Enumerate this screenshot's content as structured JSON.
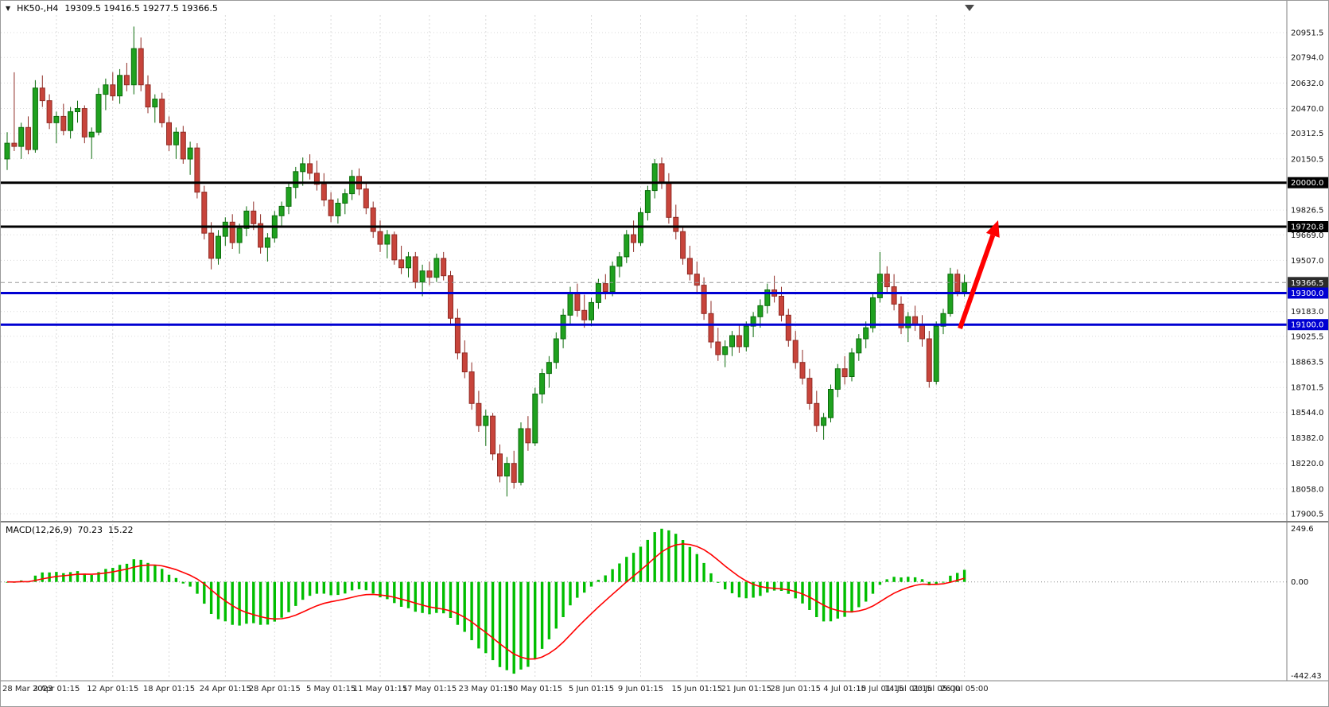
{
  "window": {
    "symbol": "HK50-,H4",
    "ohlc_text": "19309.5 19416.5 19277.5 19366.5"
  },
  "colors": {
    "bull": "#1FA11F",
    "bull_border": "#0B6B0B",
    "bear": "#C8443B",
    "bear_border": "#8F2B24",
    "hist": "#00BE00",
    "signal": "#FF0000",
    "grid": "#DADADA",
    "blue_line": "#0000D2",
    "black_line": "#000000",
    "arrow": "#FF0000"
  },
  "chart_data": {
    "type": "candlestick",
    "title": "HK50-,H4",
    "current_ohlc": {
      "open": 19309.5,
      "high": 19416.5,
      "low": 19277.5,
      "close": 19366.5
    },
    "y_axis_ticks": [
      20951.5,
      20794.0,
      20632.0,
      20470.0,
      20312.5,
      20150.5,
      19826.5,
      19669.0,
      19507.0,
      19183.0,
      19025.5,
      18863.5,
      18701.5,
      18544.0,
      18382.0,
      18220.0,
      18058.0,
      17900.5
    ],
    "price_lines": [
      {
        "price": 20000.0,
        "label": "20000.0",
        "color": "#000000",
        "style": "solid"
      },
      {
        "price": 19720.8,
        "label": "19720.8",
        "color": "#000000",
        "style": "solid"
      },
      {
        "price": 19366.5,
        "label": "19366.5",
        "color": "#9A9A9A",
        "tag_color": "#2B2B2B",
        "style": "bid-dashed"
      },
      {
        "price": 19300.0,
        "label": "19300.0",
        "color": "#0000D2",
        "style": "solid"
      },
      {
        "price": 19100.0,
        "label": "19100.0",
        "color": "#0000D2",
        "style": "solid"
      }
    ],
    "x_axis_labels": [
      {
        "label": "28 Mar 2023",
        "i": 0
      },
      {
        "label": "3 Apr 01:15",
        "i": 7
      },
      {
        "label": "12 Apr 01:15",
        "i": 15
      },
      {
        "label": "18 Apr 01:15",
        "i": 23
      },
      {
        "label": "24 Apr 01:15",
        "i": 31
      },
      {
        "label": "28 Apr 01:15",
        "i": 38
      },
      {
        "label": "5 May 01:15",
        "i": 46
      },
      {
        "label": "11 May 01:15",
        "i": 53
      },
      {
        "label": "17 May 01:15",
        "i": 60
      },
      {
        "label": "23 May 01:15",
        "i": 68
      },
      {
        "label": "30 May 01:15",
        "i": 75
      },
      {
        "label": "5 Jun 01:15",
        "i": 83
      },
      {
        "label": "9 Jun 01:15",
        "i": 90
      },
      {
        "label": "15 Jun 01:15",
        "i": 98
      },
      {
        "label": "21 Jun 01:15",
        "i": 105
      },
      {
        "label": "28 Jun 01:15",
        "i": 112
      },
      {
        "label": "4 Jul 01:15",
        "i": 119
      },
      {
        "label": "10 Jul 01:15",
        "i": 124
      },
      {
        "label": "14 Jul 01:15",
        "i": 128
      },
      {
        "label": "20 Jul 05:00",
        "i": 132
      },
      {
        "label": "26 Jul 05:00",
        "i": 136
      }
    ],
    "candles": [
      [
        20150,
        20320,
        20080,
        20250
      ],
      [
        20250,
        20700,
        20200,
        20230
      ],
      [
        20230,
        20380,
        20150,
        20350
      ],
      [
        20350,
        20420,
        20180,
        20210
      ],
      [
        20210,
        20650,
        20190,
        20600
      ],
      [
        20600,
        20680,
        20480,
        20520
      ],
      [
        20520,
        20560,
        20340,
        20380
      ],
      [
        20380,
        20450,
        20250,
        20420
      ],
      [
        20420,
        20500,
        20300,
        20330
      ],
      [
        20330,
        20480,
        20280,
        20450
      ],
      [
        20450,
        20520,
        20380,
        20470
      ],
      [
        20470,
        20490,
        20250,
        20290
      ],
      [
        20290,
        20350,
        20150,
        20320
      ],
      [
        20320,
        20600,
        20300,
        20560
      ],
      [
        20560,
        20660,
        20460,
        20620
      ],
      [
        20620,
        20700,
        20520,
        20550
      ],
      [
        20550,
        20720,
        20500,
        20680
      ],
      [
        20680,
        20760,
        20580,
        20620
      ],
      [
        20620,
        20990,
        20560,
        20850
      ],
      [
        20850,
        20920,
        20580,
        20620
      ],
      [
        20620,
        20680,
        20440,
        20480
      ],
      [
        20480,
        20560,
        20380,
        20530
      ],
      [
        20530,
        20570,
        20350,
        20380
      ],
      [
        20380,
        20420,
        20200,
        20240
      ],
      [
        20240,
        20350,
        20150,
        20320
      ],
      [
        20320,
        20360,
        20120,
        20150
      ],
      [
        20150,
        20260,
        20050,
        20220
      ],
      [
        20220,
        20250,
        19900,
        19940
      ],
      [
        19940,
        19980,
        19640,
        19680
      ],
      [
        19680,
        19750,
        19450,
        19520
      ],
      [
        19520,
        19700,
        19480,
        19660
      ],
      [
        19660,
        19780,
        19600,
        19750
      ],
      [
        19750,
        19800,
        19580,
        19620
      ],
      [
        19620,
        19740,
        19550,
        19710
      ],
      [
        19710,
        19850,
        19660,
        19820
      ],
      [
        19820,
        19880,
        19700,
        19740
      ],
      [
        19740,
        19800,
        19550,
        19590
      ],
      [
        19590,
        19680,
        19500,
        19650
      ],
      [
        19650,
        19820,
        19620,
        19790
      ],
      [
        19790,
        19880,
        19720,
        19850
      ],
      [
        19850,
        20000,
        19800,
        19970
      ],
      [
        19970,
        20100,
        19900,
        20070
      ],
      [
        20070,
        20160,
        19980,
        20120
      ],
      [
        20120,
        20180,
        20020,
        20060
      ],
      [
        20060,
        20140,
        19950,
        19990
      ],
      [
        19990,
        20060,
        19850,
        19890
      ],
      [
        19890,
        19940,
        19750,
        19790
      ],
      [
        19790,
        19900,
        19740,
        19870
      ],
      [
        19870,
        19960,
        19800,
        19930
      ],
      [
        19930,
        20080,
        19890,
        20040
      ],
      [
        20040,
        20090,
        19920,
        19960
      ],
      [
        19960,
        20000,
        19800,
        19840
      ],
      [
        19840,
        19880,
        19650,
        19690
      ],
      [
        19690,
        19760,
        19560,
        19610
      ],
      [
        19610,
        19700,
        19520,
        19670
      ],
      [
        19670,
        19690,
        19480,
        19510
      ],
      [
        19510,
        19600,
        19420,
        19460
      ],
      [
        19460,
        19560,
        19400,
        19530
      ],
      [
        19530,
        19560,
        19330,
        19370
      ],
      [
        19370,
        19480,
        19280,
        19440
      ],
      [
        19440,
        19500,
        19350,
        19400
      ],
      [
        19400,
        19550,
        19370,
        19520
      ],
      [
        19520,
        19560,
        19380,
        19410
      ],
      [
        19410,
        19440,
        19100,
        19140
      ],
      [
        19140,
        19200,
        18880,
        18920
      ],
      [
        18920,
        19000,
        18760,
        18800
      ],
      [
        18800,
        18860,
        18560,
        18600
      ],
      [
        18600,
        18680,
        18420,
        18460
      ],
      [
        18460,
        18560,
        18330,
        18520
      ],
      [
        18520,
        18540,
        18240,
        18280
      ],
      [
        18280,
        18340,
        18100,
        18140
      ],
      [
        18140,
        18260,
        18010,
        18220
      ],
      [
        18220,
        18300,
        18060,
        18100
      ],
      [
        18100,
        18480,
        18080,
        18440
      ],
      [
        18440,
        18520,
        18300,
        18350
      ],
      [
        18350,
        18700,
        18330,
        18660
      ],
      [
        18660,
        18820,
        18600,
        18790
      ],
      [
        18790,
        18900,
        18700,
        18860
      ],
      [
        18860,
        19050,
        18820,
        19010
      ],
      [
        19010,
        19200,
        18950,
        19160
      ],
      [
        19160,
        19340,
        19100,
        19300
      ],
      [
        19300,
        19360,
        19150,
        19190
      ],
      [
        19190,
        19290,
        19080,
        19130
      ],
      [
        19130,
        19270,
        19090,
        19240
      ],
      [
        19240,
        19390,
        19200,
        19360
      ],
      [
        19360,
        19420,
        19260,
        19310
      ],
      [
        19310,
        19500,
        19280,
        19470
      ],
      [
        19470,
        19560,
        19400,
        19530
      ],
      [
        19530,
        19700,
        19490,
        19670
      ],
      [
        19670,
        19760,
        19560,
        19620
      ],
      [
        19620,
        19840,
        19600,
        19810
      ],
      [
        19810,
        19980,
        19760,
        19950
      ],
      [
        19950,
        20150,
        19900,
        20120
      ],
      [
        20120,
        20160,
        19960,
        20000
      ],
      [
        20000,
        20060,
        19740,
        19780
      ],
      [
        19780,
        19860,
        19640,
        19690
      ],
      [
        19690,
        19720,
        19480,
        19520
      ],
      [
        19520,
        19600,
        19380,
        19420
      ],
      [
        19420,
        19500,
        19300,
        19350
      ],
      [
        19350,
        19400,
        19130,
        19170
      ],
      [
        19170,
        19250,
        18950,
        18990
      ],
      [
        18990,
        19080,
        18870,
        18910
      ],
      [
        18910,
        19000,
        18830,
        18960
      ],
      [
        18960,
        19060,
        18900,
        19030
      ],
      [
        19030,
        19100,
        18920,
        18960
      ],
      [
        18960,
        19120,
        18930,
        19090
      ],
      [
        19090,
        19180,
        19020,
        19150
      ],
      [
        19150,
        19260,
        19080,
        19220
      ],
      [
        19220,
        19360,
        19170,
        19320
      ],
      [
        19320,
        19410,
        19240,
        19280
      ],
      [
        19280,
        19340,
        19120,
        19160
      ],
      [
        19160,
        19200,
        18960,
        19000
      ],
      [
        19000,
        19060,
        18820,
        18860
      ],
      [
        18860,
        18940,
        18720,
        18760
      ],
      [
        18760,
        18820,
        18560,
        18600
      ],
      [
        18600,
        18680,
        18420,
        18460
      ],
      [
        18460,
        18540,
        18370,
        18510
      ],
      [
        18510,
        18720,
        18480,
        18690
      ],
      [
        18690,
        18850,
        18640,
        18820
      ],
      [
        18820,
        18900,
        18720,
        18770
      ],
      [
        18770,
        18950,
        18740,
        18920
      ],
      [
        18920,
        19040,
        18870,
        19010
      ],
      [
        19010,
        19120,
        18950,
        19080
      ],
      [
        19080,
        19300,
        19050,
        19270
      ],
      [
        19270,
        19560,
        19240,
        19420
      ],
      [
        19420,
        19470,
        19300,
        19340
      ],
      [
        19340,
        19420,
        19190,
        19230
      ],
      [
        19230,
        19280,
        19040,
        19080
      ],
      [
        19080,
        19180,
        18990,
        19150
      ],
      [
        19150,
        19220,
        19060,
        19100
      ],
      [
        19100,
        19160,
        18960,
        19010
      ],
      [
        19010,
        19060,
        18700,
        18740
      ],
      [
        18740,
        19120,
        18720,
        19090
      ],
      [
        19090,
        19200,
        19040,
        19170
      ],
      [
        19170,
        19460,
        19150,
        19420
      ],
      [
        19420,
        19450,
        19280,
        19309.5
      ],
      [
        19309.5,
        19416.5,
        19277.5,
        19366.5
      ]
    ],
    "indicator": {
      "label": "MACD(12,26,9)",
      "macd_value": "70.23",
      "signal_value": "15.22",
      "params": {
        "fast": 12,
        "slow": 26,
        "signal": 9
      },
      "axis_labels": {
        "max": "249.6",
        "zero": "0.00",
        "min": "-442.43"
      }
    },
    "annotations": [
      {
        "type": "arrow",
        "from": [
          1206,
          412
        ],
        "to": [
          1254,
          276
        ],
        "color": "#FF0000"
      }
    ]
  }
}
